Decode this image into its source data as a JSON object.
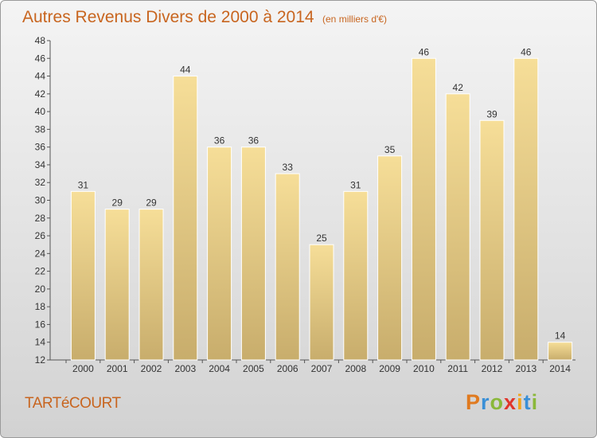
{
  "chart_data": {
    "type": "bar",
    "title": "Autres Revenus Divers de 2000 à 2014",
    "unit": "(en milliers d'€)",
    "categories": [
      "2000",
      "2001",
      "2002",
      "2003",
      "2004",
      "2005",
      "2006",
      "2007",
      "2008",
      "2009",
      "2010",
      "2011",
      "2012",
      "2013",
      "2014"
    ],
    "values": [
      31,
      29,
      29,
      44,
      36,
      36,
      33,
      25,
      31,
      35,
      46,
      42,
      39,
      46,
      14
    ],
    "ylim": [
      12,
      48
    ],
    "yticks": [
      12,
      14,
      16,
      18,
      20,
      22,
      24,
      26,
      28,
      30,
      32,
      34,
      36,
      38,
      40,
      42,
      44,
      46,
      48
    ],
    "grid": false,
    "bar_color": "#f2d98f"
  },
  "commune": "TARTéCOURT",
  "logo": {
    "letters": [
      "P",
      "r",
      "o",
      "x",
      "i",
      "t",
      "i"
    ],
    "colors": [
      "#e07a1f",
      "#3a8fd6",
      "#8ab83a",
      "#e0362c",
      "#f2a51c",
      "#3a8fd6",
      "#8ab83a"
    ]
  }
}
